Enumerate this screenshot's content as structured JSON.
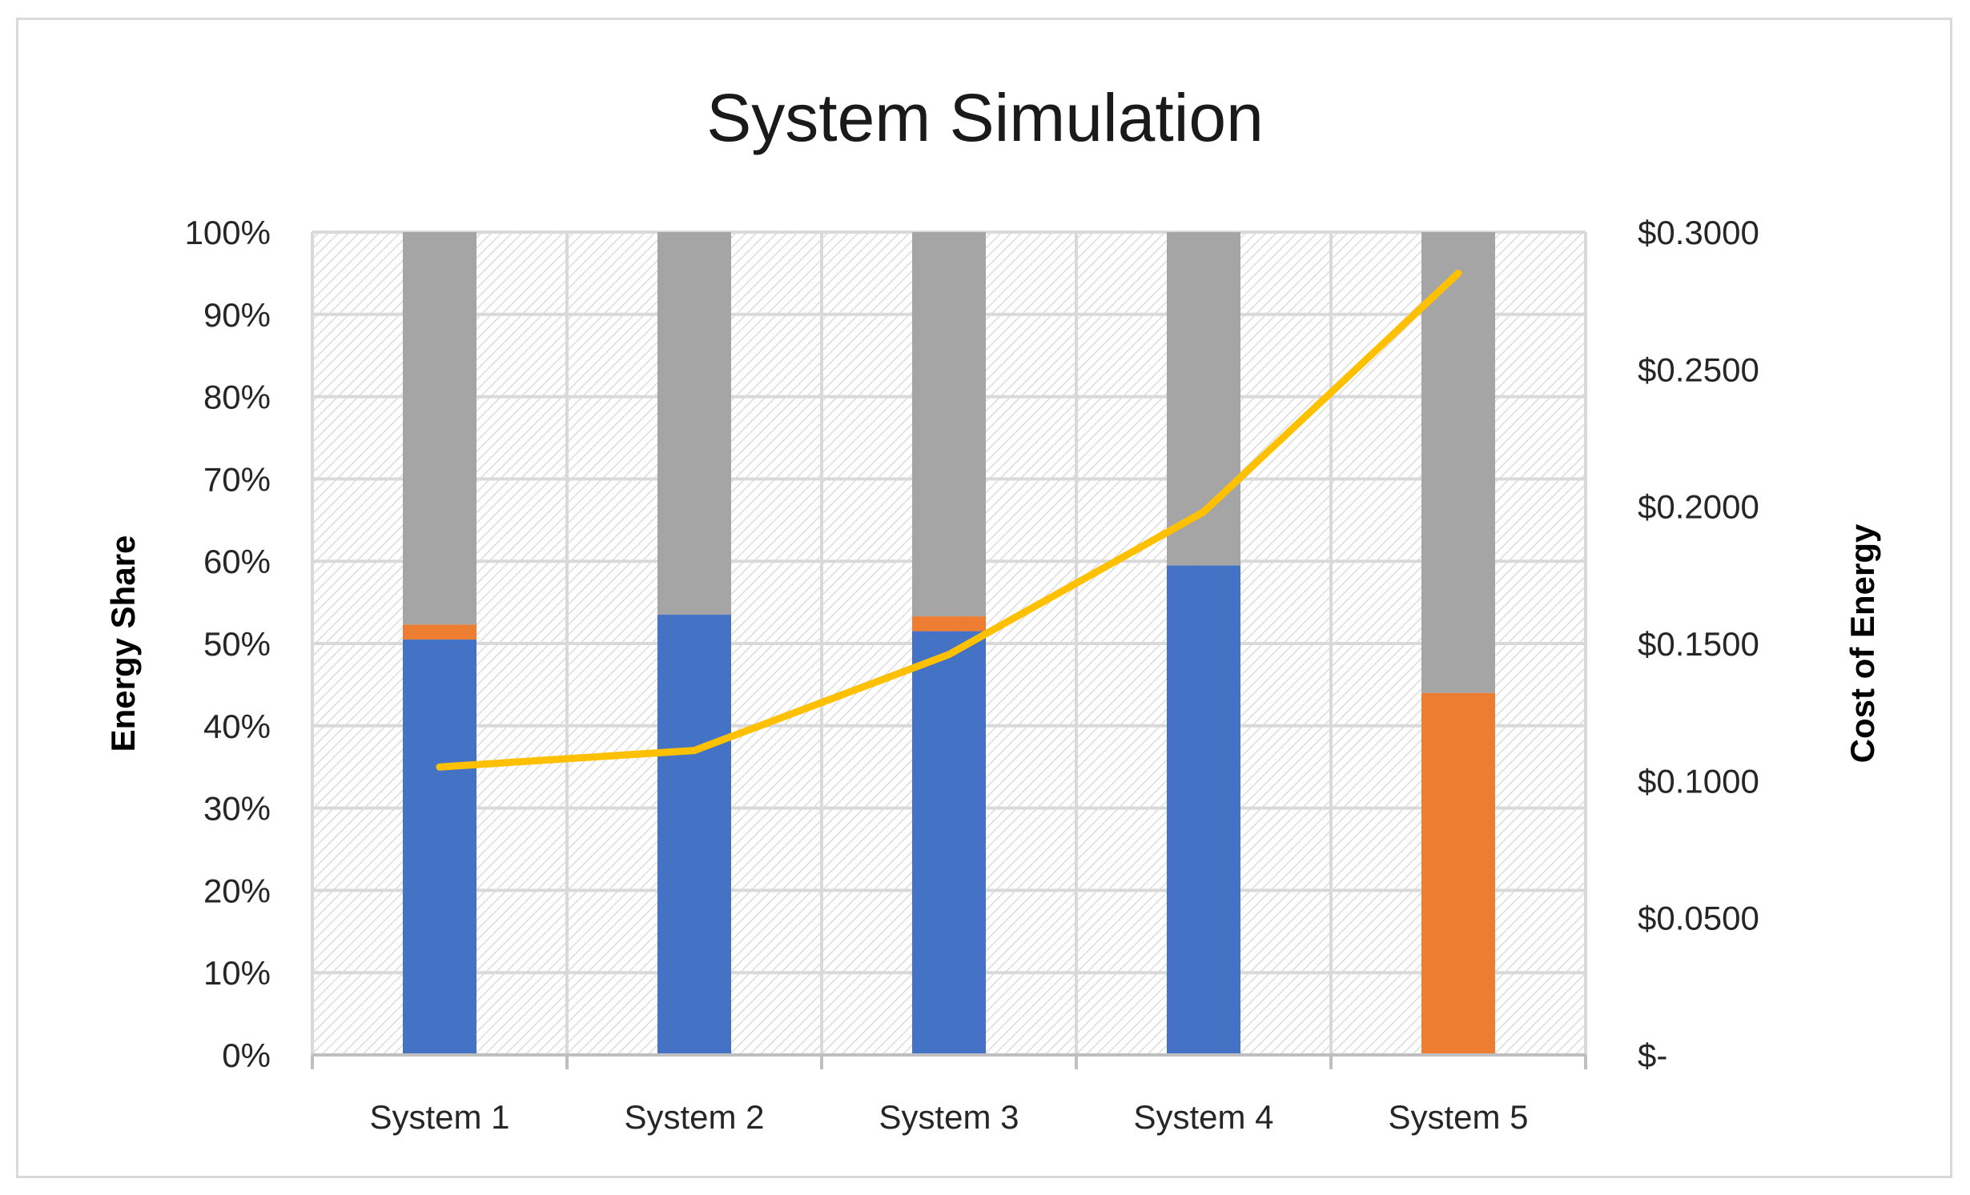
{
  "chart_data": {
    "type": "bar",
    "stacked": true,
    "title": "System Simulation",
    "categories": [
      "System 1",
      "System 2",
      "System 3",
      "System 4",
      "System 5"
    ],
    "series": [
      {
        "color": "#4472c4",
        "values": [
          50.5,
          53.5,
          51.5,
          59.5,
          0
        ]
      },
      {
        "color": "#ed7d31",
        "values": [
          1.8,
          0,
          1.8,
          0,
          44
        ]
      },
      {
        "color": "#a5a5a5",
        "values": [
          47.7,
          46.5,
          46.7,
          40.5,
          56
        ]
      }
    ],
    "line_series": {
      "color": "#ffc000",
      "axis": "right",
      "values": [
        0.105,
        0.111,
        0.146,
        0.198,
        0.285
      ]
    },
    "ylabel": "Energy Share",
    "ylim": [
      0,
      100
    ],
    "yticks": [
      "0%",
      "10%",
      "20%",
      "30%",
      "40%",
      "50%",
      "60%",
      "70%",
      "80%",
      "90%",
      "100%"
    ],
    "y2label": "Cost of Energy",
    "y2lim": [
      0,
      0.3
    ],
    "y2ticks": [
      "$-",
      "$0.0500",
      "$0.1000",
      "$0.1500",
      "$0.2000",
      "$0.2500",
      "$0.3000"
    ],
    "grid": true,
    "plot_area_fill": "hatched",
    "legend": "none"
  }
}
